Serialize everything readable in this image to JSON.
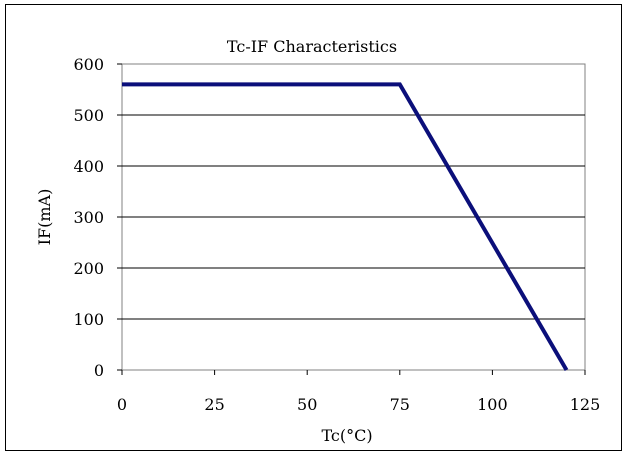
{
  "chart_data": {
    "type": "line",
    "title": "Tc-IF Characteristics",
    "xlabel": "Tc(°C)",
    "ylabel": "IF(mA)",
    "xlim": [
      0,
      125
    ],
    "ylim": [
      0,
      600
    ],
    "xticks": [
      0,
      25,
      50,
      75,
      100,
      125
    ],
    "yticks": [
      0,
      100,
      200,
      300,
      400,
      500,
      600
    ],
    "grid": "horizontal",
    "legend": "none",
    "series": [
      {
        "x": [
          0,
          75,
          120
        ],
        "y": [
          560,
          560,
          0
        ],
        "color": "#0b0f7a"
      }
    ]
  }
}
